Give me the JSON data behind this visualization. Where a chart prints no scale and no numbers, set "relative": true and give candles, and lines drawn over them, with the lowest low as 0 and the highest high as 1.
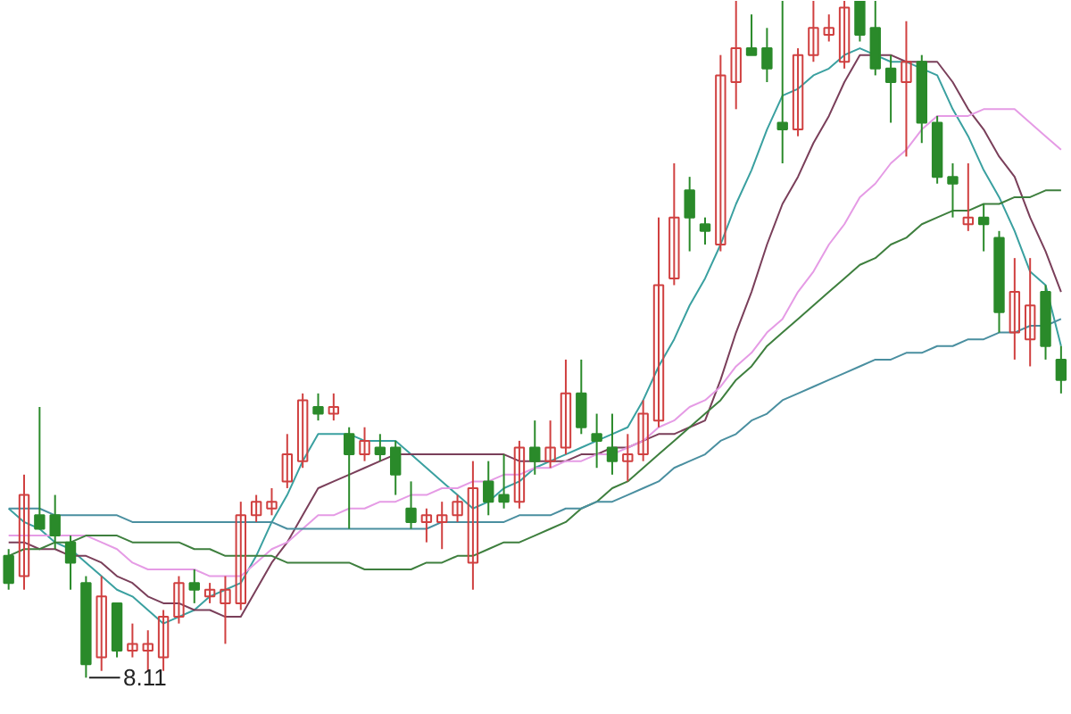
{
  "chart_data": {
    "type": "candlestick",
    "relative": true,
    "categories": [
      null,
      null,
      null,
      null,
      null,
      null,
      null,
      null,
      null,
      null,
      null,
      null,
      null,
      null,
      null,
      null,
      null,
      null,
      null,
      null,
      null,
      null,
      null,
      null,
      null,
      null,
      null,
      null,
      null,
      null,
      null,
      null,
      null,
      null,
      null,
      null,
      null,
      null,
      null,
      null,
      null,
      null,
      null,
      null,
      null,
      null,
      null,
      null,
      null,
      null,
      null,
      null,
      null,
      null,
      null,
      null,
      null,
      null,
      null,
      null,
      null,
      null,
      null,
      null,
      null,
      null,
      null,
      null,
      null
    ],
    "ohlc": [
      [
        0.18,
        0.19,
        0.13,
        0.14
      ],
      [
        0.15,
        0.3,
        0.13,
        0.27
      ],
      [
        0.24,
        0.4,
        0.22,
        0.22
      ],
      [
        0.24,
        0.27,
        0.19,
        0.21
      ],
      [
        0.2,
        0.21,
        0.13,
        0.17
      ],
      [
        0.14,
        0.15,
        0.0,
        0.02
      ],
      [
        0.03,
        0.15,
        0.01,
        0.12
      ],
      [
        0.11,
        0.11,
        0.03,
        0.04
      ],
      [
        0.04,
        0.08,
        0.03,
        0.05
      ],
      [
        0.04,
        0.07,
        0.01,
        0.05
      ],
      [
        0.03,
        0.1,
        0.01,
        0.09
      ],
      [
        0.09,
        0.15,
        0.08,
        0.14
      ],
      [
        0.14,
        0.16,
        0.11,
        0.13
      ],
      [
        0.12,
        0.14,
        0.11,
        0.13
      ],
      [
        0.11,
        0.15,
        0.05,
        0.13
      ],
      [
        0.11,
        0.26,
        0.1,
        0.24
      ],
      [
        0.24,
        0.27,
        0.23,
        0.26
      ],
      [
        0.25,
        0.28,
        0.24,
        0.26
      ],
      [
        0.29,
        0.36,
        0.28,
        0.33
      ],
      [
        0.32,
        0.42,
        0.31,
        0.41
      ],
      [
        0.4,
        0.42,
        0.38,
        0.39
      ],
      [
        0.39,
        0.42,
        0.38,
        0.4
      ],
      [
        0.36,
        0.37,
        0.22,
        0.33
      ],
      [
        0.33,
        0.37,
        0.32,
        0.35
      ],
      [
        0.34,
        0.36,
        0.32,
        0.33
      ],
      [
        0.34,
        0.35,
        0.27,
        0.3
      ],
      [
        0.25,
        0.29,
        0.22,
        0.23
      ],
      [
        0.23,
        0.25,
        0.2,
        0.24
      ],
      [
        0.23,
        0.26,
        0.19,
        0.24
      ],
      [
        0.24,
        0.27,
        0.23,
        0.26
      ],
      [
        0.17,
        0.32,
        0.13,
        0.28
      ],
      [
        0.29,
        0.32,
        0.24,
        0.26
      ],
      [
        0.27,
        0.33,
        0.25,
        0.26
      ],
      [
        0.26,
        0.35,
        0.25,
        0.34
      ],
      [
        0.34,
        0.38,
        0.3,
        0.32
      ],
      [
        0.32,
        0.38,
        0.31,
        0.34
      ],
      [
        0.34,
        0.47,
        0.33,
        0.42
      ],
      [
        0.42,
        0.47,
        0.36,
        0.37
      ],
      [
        0.36,
        0.39,
        0.31,
        0.35
      ],
      [
        0.34,
        0.39,
        0.3,
        0.32
      ],
      [
        0.32,
        0.36,
        0.29,
        0.33
      ],
      [
        0.33,
        0.41,
        0.32,
        0.39
      ],
      [
        0.38,
        0.68,
        0.37,
        0.58
      ],
      [
        0.59,
        0.76,
        0.58,
        0.68
      ],
      [
        0.72,
        0.74,
        0.63,
        0.68
      ],
      [
        0.67,
        0.68,
        0.64,
        0.66
      ],
      [
        0.64,
        0.92,
        0.63,
        0.89
      ],
      [
        0.88,
        1.0,
        0.84,
        0.93
      ],
      [
        0.93,
        0.98,
        0.92,
        0.92
      ],
      [
        0.93,
        0.96,
        0.88,
        0.9
      ],
      [
        0.82,
        1.0,
        0.76,
        0.81
      ],
      [
        0.81,
        0.93,
        0.8,
        0.92
      ],
      [
        0.92,
        1.0,
        0.91,
        0.96
      ],
      [
        0.95,
        0.98,
        0.94,
        0.96
      ],
      [
        0.91,
        1.0,
        0.9,
        0.99
      ],
      [
        1.0,
        1.0,
        0.94,
        0.95
      ],
      [
        0.96,
        1.0,
        0.89,
        0.9
      ],
      [
        0.9,
        0.92,
        0.82,
        0.88
      ],
      [
        0.88,
        0.97,
        0.77,
        0.91
      ],
      [
        0.91,
        0.92,
        0.79,
        0.82
      ],
      [
        0.82,
        0.83,
        0.73,
        0.74
      ],
      [
        0.74,
        0.76,
        0.68,
        0.73
      ],
      [
        0.67,
        0.76,
        0.66,
        0.68
      ],
      [
        0.68,
        0.7,
        0.63,
        0.67
      ],
      [
        0.65,
        0.66,
        0.51,
        0.54
      ],
      [
        0.51,
        0.62,
        0.47,
        0.57
      ],
      [
        0.5,
        0.62,
        0.46,
        0.55
      ],
      [
        0.57,
        0.58,
        0.47,
        0.49
      ],
      [
        0.47,
        0.49,
        0.42,
        0.44
      ]
    ],
    "series": [
      {
        "type": "line",
        "color": "#3aa0a0",
        "values": [
          0.25,
          0.23,
          0.22,
          0.2,
          0.19,
          0.17,
          0.15,
          0.13,
          0.12,
          0.1,
          0.08,
          0.09,
          0.1,
          0.12,
          0.13,
          0.14,
          0.18,
          0.23,
          0.27,
          0.32,
          0.36,
          0.36,
          0.36,
          0.35,
          0.35,
          0.35,
          0.33,
          0.31,
          0.29,
          0.27,
          0.25,
          0.26,
          0.28,
          0.29,
          0.31,
          0.32,
          0.33,
          0.34,
          0.35,
          0.36,
          0.37,
          0.41,
          0.46,
          0.5,
          0.55,
          0.59,
          0.64,
          0.7,
          0.75,
          0.81,
          0.86,
          0.87,
          0.89,
          0.9,
          0.92,
          0.93,
          0.92,
          0.91,
          0.91,
          0.9,
          0.89,
          0.84,
          0.8,
          0.75,
          0.71,
          0.66,
          0.6,
          0.58,
          0.49
        ]
      },
      {
        "type": "line",
        "color": "#7a3f5a",
        "values": [
          0.2,
          0.2,
          0.19,
          0.19,
          0.18,
          0.18,
          0.17,
          0.15,
          0.14,
          0.12,
          0.11,
          0.11,
          0.1,
          0.1,
          0.09,
          0.09,
          0.13,
          0.17,
          0.2,
          0.24,
          0.28,
          0.29,
          0.3,
          0.31,
          0.32,
          0.33,
          0.33,
          0.33,
          0.33,
          0.33,
          0.33,
          0.33,
          0.33,
          0.32,
          0.32,
          0.32,
          0.32,
          0.33,
          0.33,
          0.34,
          0.34,
          0.35,
          0.36,
          0.36,
          0.37,
          0.38,
          0.44,
          0.51,
          0.57,
          0.64,
          0.7,
          0.74,
          0.79,
          0.83,
          0.88,
          0.92,
          0.92,
          0.92,
          0.91,
          0.91,
          0.91,
          0.88,
          0.84,
          0.81,
          0.77,
          0.74,
          0.68,
          0.63,
          0.57
        ]
      },
      {
        "type": "line",
        "color": "#e59be5",
        "values": [
          0.21,
          0.21,
          0.21,
          0.21,
          0.21,
          0.21,
          0.2,
          0.19,
          0.17,
          0.16,
          0.16,
          0.16,
          0.16,
          0.15,
          0.15,
          0.15,
          0.17,
          0.19,
          0.2,
          0.22,
          0.24,
          0.24,
          0.25,
          0.25,
          0.26,
          0.26,
          0.27,
          0.27,
          0.28,
          0.28,
          0.29,
          0.29,
          0.3,
          0.3,
          0.31,
          0.31,
          0.32,
          0.32,
          0.33,
          0.33,
          0.34,
          0.35,
          0.37,
          0.38,
          0.4,
          0.41,
          0.43,
          0.46,
          0.48,
          0.51,
          0.53,
          0.57,
          0.6,
          0.64,
          0.67,
          0.71,
          0.73,
          0.76,
          0.78,
          0.81,
          0.83,
          0.83,
          0.83,
          0.84,
          0.84,
          0.84,
          0.82,
          0.8,
          0.78
        ]
      },
      {
        "type": "line",
        "color": "#3e7f3e",
        "values": [
          0.18,
          0.19,
          0.19,
          0.2,
          0.2,
          0.21,
          0.21,
          0.21,
          0.2,
          0.2,
          0.2,
          0.2,
          0.19,
          0.19,
          0.18,
          0.18,
          0.18,
          0.18,
          0.17,
          0.17,
          0.17,
          0.17,
          0.17,
          0.16,
          0.16,
          0.16,
          0.16,
          0.17,
          0.17,
          0.18,
          0.18,
          0.19,
          0.2,
          0.2,
          0.21,
          0.22,
          0.23,
          0.25,
          0.26,
          0.28,
          0.29,
          0.31,
          0.33,
          0.35,
          0.37,
          0.39,
          0.41,
          0.44,
          0.46,
          0.49,
          0.51,
          0.53,
          0.55,
          0.57,
          0.59,
          0.61,
          0.62,
          0.64,
          0.65,
          0.67,
          0.68,
          0.69,
          0.69,
          0.7,
          0.7,
          0.71,
          0.71,
          0.72,
          0.72
        ]
      },
      {
        "type": "line",
        "color": "#4a8fa0",
        "values": [
          0.25,
          0.25,
          0.25,
          0.24,
          0.24,
          0.24,
          0.24,
          0.24,
          0.23,
          0.23,
          0.23,
          0.23,
          0.23,
          0.23,
          0.23,
          0.23,
          0.23,
          0.23,
          0.22,
          0.22,
          0.22,
          0.22,
          0.22,
          0.22,
          0.22,
          0.22,
          0.22,
          0.22,
          0.23,
          0.23,
          0.23,
          0.23,
          0.23,
          0.24,
          0.24,
          0.24,
          0.25,
          0.25,
          0.26,
          0.26,
          0.27,
          0.28,
          0.29,
          0.31,
          0.32,
          0.33,
          0.35,
          0.36,
          0.38,
          0.39,
          0.41,
          0.42,
          0.43,
          0.44,
          0.45,
          0.46,
          0.47,
          0.47,
          0.48,
          0.48,
          0.49,
          0.49,
          0.5,
          0.5,
          0.51,
          0.51,
          0.52,
          0.52,
          0.53
        ]
      }
    ],
    "annotations": [
      {
        "text": "8.11",
        "y": 0.0
      }
    ]
  }
}
